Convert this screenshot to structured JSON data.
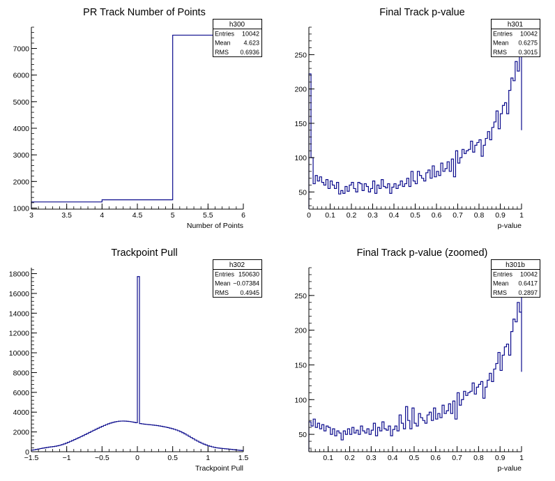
{
  "chart_data": [
    {
      "type": "histogram",
      "title": "PR Track Number of Points",
      "xlabel": "Number of Points",
      "xlim": [
        3,
        6
      ],
      "ylim": [
        960,
        7800
      ],
      "xticks": [
        3,
        3.5,
        4,
        4.5,
        5,
        5.5,
        6
      ],
      "xtick_labels": [
        "3",
        "3.5",
        "4",
        "4.5",
        "5",
        "5.5",
        "6"
      ],
      "yticks": [
        1000,
        2000,
        3000,
        4000,
        5000,
        6000,
        7000
      ],
      "ytick_labels": [
        "1000",
        "2000",
        "3000",
        "4000",
        "5000",
        "6000",
        "7000"
      ],
      "bin_start": 3,
      "bin_width": 1,
      "values": [
        1230,
        1310,
        7500
      ],
      "color": "#0a0a8c",
      "stats": {
        "name": "h300",
        "rows": [
          {
            "label": "Entries",
            "value": "10042"
          },
          {
            "label": "Mean",
            "value": "4.623"
          },
          {
            "label": "RMS",
            "value": "0.6936"
          }
        ]
      }
    },
    {
      "type": "histogram",
      "title": "Final Track p-value",
      "xlabel": "p-value",
      "xlim": [
        0,
        1
      ],
      "ylim": [
        25,
        290
      ],
      "xticks": [
        0,
        0.1,
        0.2,
        0.3,
        0.4,
        0.5,
        0.6,
        0.7,
        0.8,
        0.9,
        1
      ],
      "xtick_labels": [
        "0",
        "0.1",
        "0.2",
        "0.3",
        "0.4",
        "0.5",
        "0.6",
        "0.7",
        "0.8",
        "0.9",
        "1"
      ],
      "yticks": [
        50,
        100,
        150,
        200,
        250
      ],
      "ytick_labels": [
        "50",
        "100",
        "150",
        "200",
        "250"
      ],
      "bin_start": 0,
      "bin_width": 0.01,
      "values": [
        222,
        100,
        62,
        74,
        66,
        72,
        64,
        60,
        68,
        55,
        66,
        60,
        55,
        64,
        47,
        52,
        48,
        58,
        51,
        60,
        64,
        55,
        50,
        64,
        62,
        52,
        62,
        58,
        50,
        55,
        66,
        48,
        60,
        55,
        68,
        58,
        56,
        62,
        48,
        57,
        62,
        55,
        60,
        66,
        58,
        62,
        70,
        58,
        80,
        66,
        62,
        80,
        74,
        70,
        66,
        78,
        82,
        70,
        88,
        72,
        80,
        74,
        92,
        80,
        84,
        94,
        80,
        98,
        72,
        110,
        92,
        100,
        112,
        106,
        110,
        112,
        124,
        108,
        118,
        122,
        126,
        102,
        118,
        128,
        138,
        126,
        144,
        152,
        168,
        142,
        164,
        176,
        180,
        164,
        198,
        216,
        212,
        240,
        226,
        274,
        140
      ],
      "color": "#0a0a8c",
      "stats": {
        "name": "h301",
        "rows": [
          {
            "label": "Entries",
            "value": "10042"
          },
          {
            "label": "Mean",
            "value": "0.6275"
          },
          {
            "label": "RMS",
            "value": "0.3015"
          }
        ]
      }
    },
    {
      "type": "histogram",
      "title": "Trackpoint Pull",
      "xlabel": "Trackpoint Pull",
      "xlim": [
        -1.5,
        1.5
      ],
      "ylim": [
        0,
        18600
      ],
      "xticks": [
        -1.5,
        -1,
        -0.5,
        0,
        0.5,
        1,
        1.5
      ],
      "xtick_labels": [
        "−1.5",
        "−1",
        "−0.5",
        "0",
        "0.5",
        "1",
        "1.5"
      ],
      "yticks": [
        0,
        2000,
        4000,
        6000,
        8000,
        10000,
        12000,
        14000,
        16000,
        18000
      ],
      "ytick_labels": [
        "0",
        "2000",
        "4000",
        "6000",
        "8000",
        "10000",
        "12000",
        "14000",
        "16000",
        "18000"
      ],
      "bin_start": -1.5,
      "bin_width": 0.03,
      "values": [
        168,
        199,
        235,
        279,
        321,
        360,
        398,
        433,
        464,
        493,
        522,
        556,
        597,
        649,
        711,
        782,
        862,
        949,
        1042,
        1138,
        1234,
        1330,
        1427,
        1527,
        1630,
        1735,
        1842,
        1949,
        2056,
        2162,
        2266,
        2367,
        2467,
        2563,
        2656,
        2744,
        2825,
        2898,
        2961,
        3013,
        3053,
        3081,
        3097,
        3100,
        3093,
        3076,
        3050,
        3016,
        2976,
        2932,
        17700,
        2846,
        2813,
        2785,
        2761,
        2739,
        2717,
        2694,
        2669,
        2640,
        2607,
        2570,
        2530,
        2486,
        2438,
        2387,
        2331,
        2269,
        2198,
        2117,
        2024,
        1920,
        1806,
        1685,
        1559,
        1432,
        1306,
        1184,
        1069,
        960,
        860,
        768,
        685,
        611,
        545,
        488,
        440,
        400,
        368,
        342,
        320,
        300,
        280,
        258,
        235,
        210,
        186,
        162,
        140,
        121
      ],
      "color": "#0a0a8c",
      "stats": {
        "name": "h302",
        "rows": [
          {
            "label": "Entries",
            "value": "150630"
          },
          {
            "label": "Mean",
            "value": "−0.07384"
          },
          {
            "label": "RMS",
            "value": "0.4945"
          }
        ]
      }
    },
    {
      "type": "histogram",
      "title": "Final Track p-value (zoomed)",
      "xlabel": "p-value",
      "xlim": [
        0.01,
        1
      ],
      "ylim": [
        25,
        290
      ],
      "xticks": [
        0.1,
        0.2,
        0.3,
        0.4,
        0.5,
        0.6,
        0.7,
        0.8,
        0.9,
        1
      ],
      "xtick_labels": [
        "0.1",
        "0.2",
        "0.3",
        "0.4",
        "0.5",
        "0.6",
        "0.7",
        "0.8",
        "0.9",
        "1"
      ],
      "yticks": [
        50,
        100,
        150,
        200,
        250
      ],
      "ytick_labels": [
        "50",
        "100",
        "150",
        "200",
        "250"
      ],
      "bin_start": 0.01,
      "bin_width": 0.01,
      "values": [
        68,
        62,
        72,
        60,
        66,
        58,
        64,
        55,
        62,
        60,
        50,
        58,
        48,
        55,
        52,
        42,
        55,
        50,
        58,
        50,
        60,
        52,
        56,
        50,
        62,
        55,
        52,
        58,
        50,
        56,
        66,
        48,
        60,
        55,
        68,
        58,
        56,
        62,
        48,
        57,
        62,
        55,
        78,
        66,
        58,
        90,
        70,
        58,
        88,
        66,
        62,
        80,
        74,
        70,
        66,
        78,
        82,
        70,
        88,
        72,
        80,
        74,
        92,
        80,
        84,
        94,
        80,
        98,
        72,
        110,
        92,
        100,
        112,
        106,
        110,
        112,
        124,
        108,
        118,
        122,
        126,
        102,
        118,
        128,
        138,
        126,
        144,
        152,
        168,
        142,
        164,
        176,
        180,
        164,
        198,
        216,
        212,
        240,
        226,
        274
      ],
      "last_values": [
        140
      ],
      "color": "#0a0a8c",
      "stats": {
        "name": "h301b",
        "rows": [
          {
            "label": "Entries",
            "value": "10042"
          },
          {
            "label": "Mean",
            "value": "0.6417"
          },
          {
            "label": "RMS",
            "value": "0.2897"
          }
        ]
      }
    }
  ]
}
